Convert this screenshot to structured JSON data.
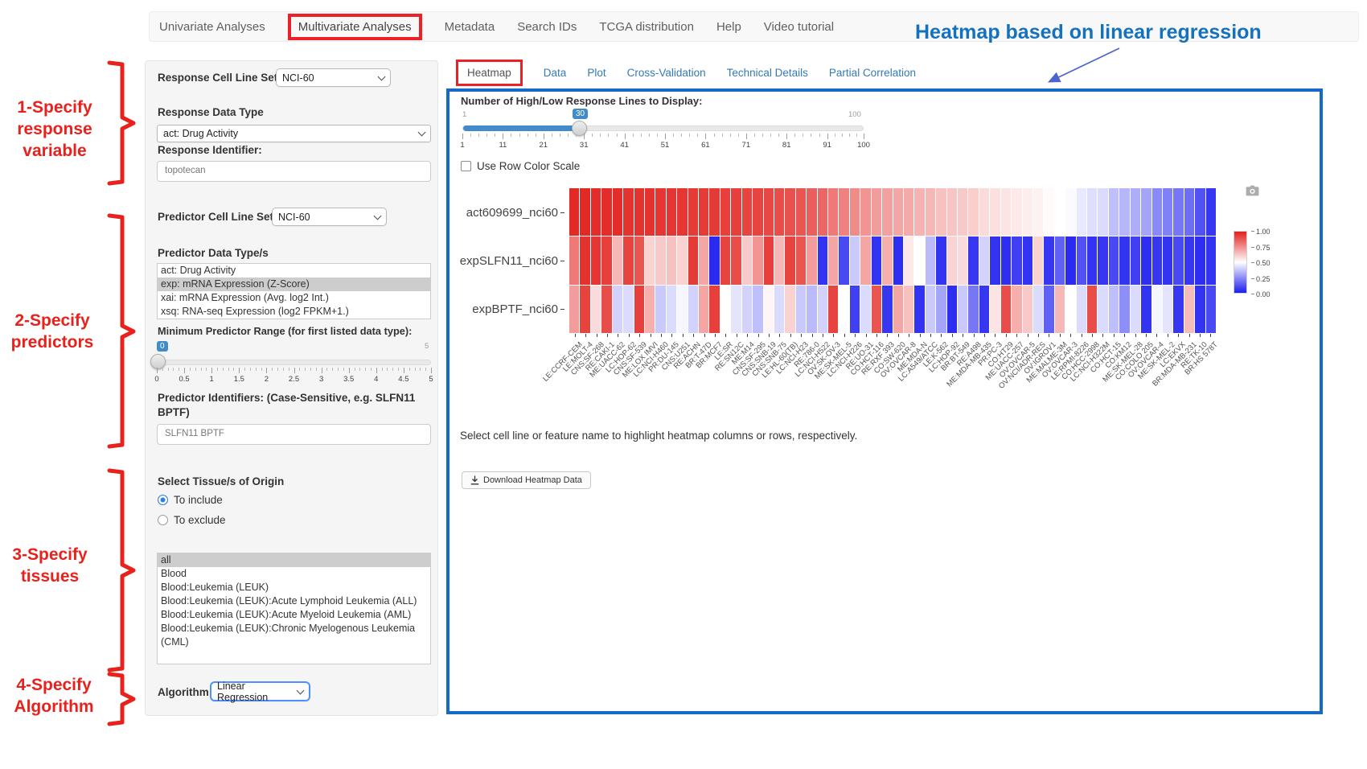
{
  "nav": {
    "items": [
      {
        "label": "Univariate Analyses"
      },
      {
        "label": "Multivariate Analyses",
        "boxed": true
      },
      {
        "label": "Metadata"
      },
      {
        "label": "Search IDs"
      },
      {
        "label": "TCGA distribution"
      },
      {
        "label": "Help"
      },
      {
        "label": "Video tutorial"
      }
    ]
  },
  "annotations": {
    "heatmap_note": "Heatmap based on linear regression",
    "note_color": "#1471bd",
    "step_color": "#e8211c",
    "steps": [
      {
        "lines": [
          "1-Specify",
          "response",
          "variable"
        ]
      },
      {
        "lines": [
          "2-Specify",
          "predictors"
        ]
      },
      {
        "lines": [
          "3-Specify",
          "tissues"
        ]
      },
      {
        "lines": [
          "4-Specify",
          "Algorithm"
        ]
      }
    ]
  },
  "sidebar": {
    "response": {
      "cell_line_set_label": "Response Cell Line Set",
      "cell_line_set_value": "NCI-60",
      "data_type_label": "Response Data Type",
      "data_type_value": "act: Drug Activity",
      "identifier_label": "Response Identifier:",
      "identifier_value": "topotecan"
    },
    "predictor": {
      "cell_line_set_label": "Predictor Cell Line Set",
      "cell_line_set_value": "NCI-60",
      "data_types_label": "Predictor Data Type/s",
      "data_types": [
        {
          "label": "act: Drug Activity"
        },
        {
          "label": "exp: mRNA Expression (Z-Score)",
          "selected": true
        },
        {
          "label": "xai: mRNA Expression (Avg. log2 Int.)"
        },
        {
          "label": "xsq: RNA-seq Expression (log2 FPKM+1.)"
        }
      ],
      "range_label": "Minimum Predictor Range (for first listed data type):",
      "range_slider": {
        "value": "0",
        "min": "0",
        "max": "5",
        "ticks": [
          "0",
          "0.5",
          "1",
          "1.5",
          "2",
          "2.5",
          "3",
          "3.5",
          "4",
          "4.5",
          "5"
        ]
      },
      "identifiers_label": "Predictor Identifiers: (Case-Sensitive, e.g. SLFN11 BPTF)",
      "identifiers_value": "SLFN11 BPTF"
    },
    "tissues": {
      "label": "Select Tissue/s of Origin",
      "include_option": "To include",
      "exclude_option": "To exclude",
      "selected_mode": "include",
      "options": [
        {
          "label": "all",
          "selected": true
        },
        {
          "label": "Blood"
        },
        {
          "label": "Blood:Leukemia (LEUK)"
        },
        {
          "label": "Blood:Leukemia (LEUK):Acute Lymphoid Leukemia (ALL)"
        },
        {
          "label": "Blood:Leukemia (LEUK):Acute Myeloid Leukemia (AML)"
        },
        {
          "label": "Blood:Leukemia (LEUK):Chronic Myelogenous Leukemia (CML)"
        }
      ]
    },
    "algorithm": {
      "label": "Algorithm",
      "value": "Linear Regression"
    }
  },
  "main": {
    "tabs": [
      {
        "label": "Heatmap",
        "active": true,
        "boxed": true
      },
      {
        "label": "Data"
      },
      {
        "label": "Plot"
      },
      {
        "label": "Cross-Validation"
      },
      {
        "label": "Technical Details"
      },
      {
        "label": "Partial Correlation"
      }
    ],
    "lines_slider": {
      "label": "Number of High/Low Response Lines to Display:",
      "min": "1",
      "max": "100",
      "value": "30",
      "ticks": [
        "1",
        "11",
        "21",
        "31",
        "41",
        "51",
        "61",
        "71",
        "81",
        "91",
        "100"
      ]
    },
    "row_scale_label": "Use Row Color Scale",
    "row_scale_checked": false,
    "footer_note": "Select cell line or feature name to highlight heatmap columns or rows, respectively.",
    "download_button": "Download Heatmap Data"
  },
  "chart_data": {
    "type": "heatmap",
    "title": "",
    "rows": [
      "act609699_nci60",
      "expSLFN11_nci60",
      "expBPTF_nci60"
    ],
    "columns": [
      "LE:CCRF-CEM",
      "LE:MOLT-4",
      "CNS:SF-268",
      "RE:CAKI-1",
      "ME:UACC-62",
      "LC:HOP-62",
      "CNS:SF-539",
      "ME:LOX IMVI",
      "LC:NCI-H460",
      "PR:DU-145",
      "CNS:U251",
      "RE:ACHN",
      "BR:T-47D",
      "BR:MCF7",
      "LE:SR",
      "RE:SN12C",
      "ME:M14",
      "CNS:SF-295",
      "CNS:SNB-19",
      "CNS:SNB-75",
      "LE:HL-60(TB)",
      "LC:NCI-H23",
      "RE:786-0",
      "LC:NCI-H522",
      "OV:SK-OV-3",
      "ME:SK-MEL-5",
      "LC:NCI-H226",
      "RE:UO-31",
      "CO:HCT-116",
      "RE:RXF 393",
      "CO:SW-620",
      "OV:OVCAR-8",
      "ME:MDA-N",
      "LC:A549/ATCC",
      "LE:K-562",
      "LC:HOP-92",
      "BR:BT-549",
      "RE:A498",
      "ME:MDA-MB-435",
      "PR:PC-3",
      "CO:HT29",
      "ME:UACC-257",
      "OV:OVCAR-5",
      "OV:NCI/ADR-RES",
      "OV:IGROV1",
      "ME:MALME-3M",
      "OV:OVCAR-3",
      "LE:RPMI-8226",
      "CO:HCC-2998",
      "LC:NCI-H322M",
      "CO:HCT-15",
      "CO:KM12",
      "ME:SK-MEL-28",
      "CO:COLO 205",
      "OV:OVCAR-4",
      "ME:SK-MEL-2",
      "LC:EKVX",
      "BR:MDA-MB-231",
      "RE:TK-10",
      "BR:HS 578T"
    ],
    "values": [
      [
        0.98,
        0.98,
        0.97,
        0.97,
        0.97,
        0.96,
        0.96,
        0.96,
        0.95,
        0.95,
        0.95,
        0.94,
        0.94,
        0.94,
        0.93,
        0.93,
        0.92,
        0.92,
        0.91,
        0.9,
        0.89,
        0.88,
        0.86,
        0.84,
        0.8,
        0.78,
        0.76,
        0.74,
        0.72,
        0.71,
        0.7,
        0.69,
        0.67,
        0.66,
        0.64,
        0.63,
        0.62,
        0.61,
        0.58,
        0.57,
        0.56,
        0.55,
        0.54,
        0.53,
        0.51,
        0.5,
        0.49,
        0.45,
        0.43,
        0.42,
        0.36,
        0.34,
        0.32,
        0.3,
        0.24,
        0.22,
        0.2,
        0.18,
        0.12,
        0.06
      ],
      [
        0.8,
        0.96,
        0.95,
        0.93,
        0.66,
        0.92,
        0.88,
        0.6,
        0.62,
        0.64,
        0.6,
        0.94,
        0.7,
        0.03,
        0.92,
        0.9,
        0.62,
        0.74,
        0.93,
        0.66,
        0.92,
        0.88,
        0.72,
        0.05,
        0.7,
        0.1,
        0.38,
        0.7,
        0.05,
        0.68,
        0.04,
        0.55,
        0.5,
        0.35,
        0.05,
        0.6,
        0.58,
        0.06,
        0.4,
        0.05,
        0.04,
        0.08,
        0.05,
        0.6,
        0.06,
        0.15,
        0.03,
        0.12,
        0.05,
        0.06,
        0.1,
        0.05,
        0.08,
        0.04,
        0.06,
        0.05,
        0.1,
        0.06,
        0.04,
        0.05
      ],
      [
        0.72,
        0.92,
        0.58,
        0.9,
        0.4,
        0.42,
        0.93,
        0.68,
        0.38,
        0.42,
        0.48,
        0.4,
        0.7,
        0.93,
        0.5,
        0.44,
        0.4,
        0.36,
        0.52,
        0.42,
        0.6,
        0.38,
        0.35,
        0.4,
        0.92,
        0.5,
        0.08,
        0.42,
        0.88,
        0.06,
        0.7,
        0.64,
        0.05,
        0.38,
        0.3,
        0.04,
        0.38,
        0.2,
        0.06,
        0.56,
        0.9,
        0.68,
        0.62,
        0.42,
        0.15,
        0.66,
        0.5,
        0.42,
        0.9,
        0.42,
        0.36,
        0.25,
        0.42,
        0.05,
        0.48,
        0.44,
        0.06,
        0.65,
        0.05,
        0.1
      ]
    ],
    "colorscale": {
      "max_color": "#e2201c",
      "mid_color": "#ffffff",
      "min_color": "#1c1cf0",
      "legend_ticks": [
        "1.00",
        "0.75",
        "0.50",
        "0.25",
        "0.00"
      ],
      "range": [
        0,
        1
      ],
      "legend_position": "right"
    }
  }
}
